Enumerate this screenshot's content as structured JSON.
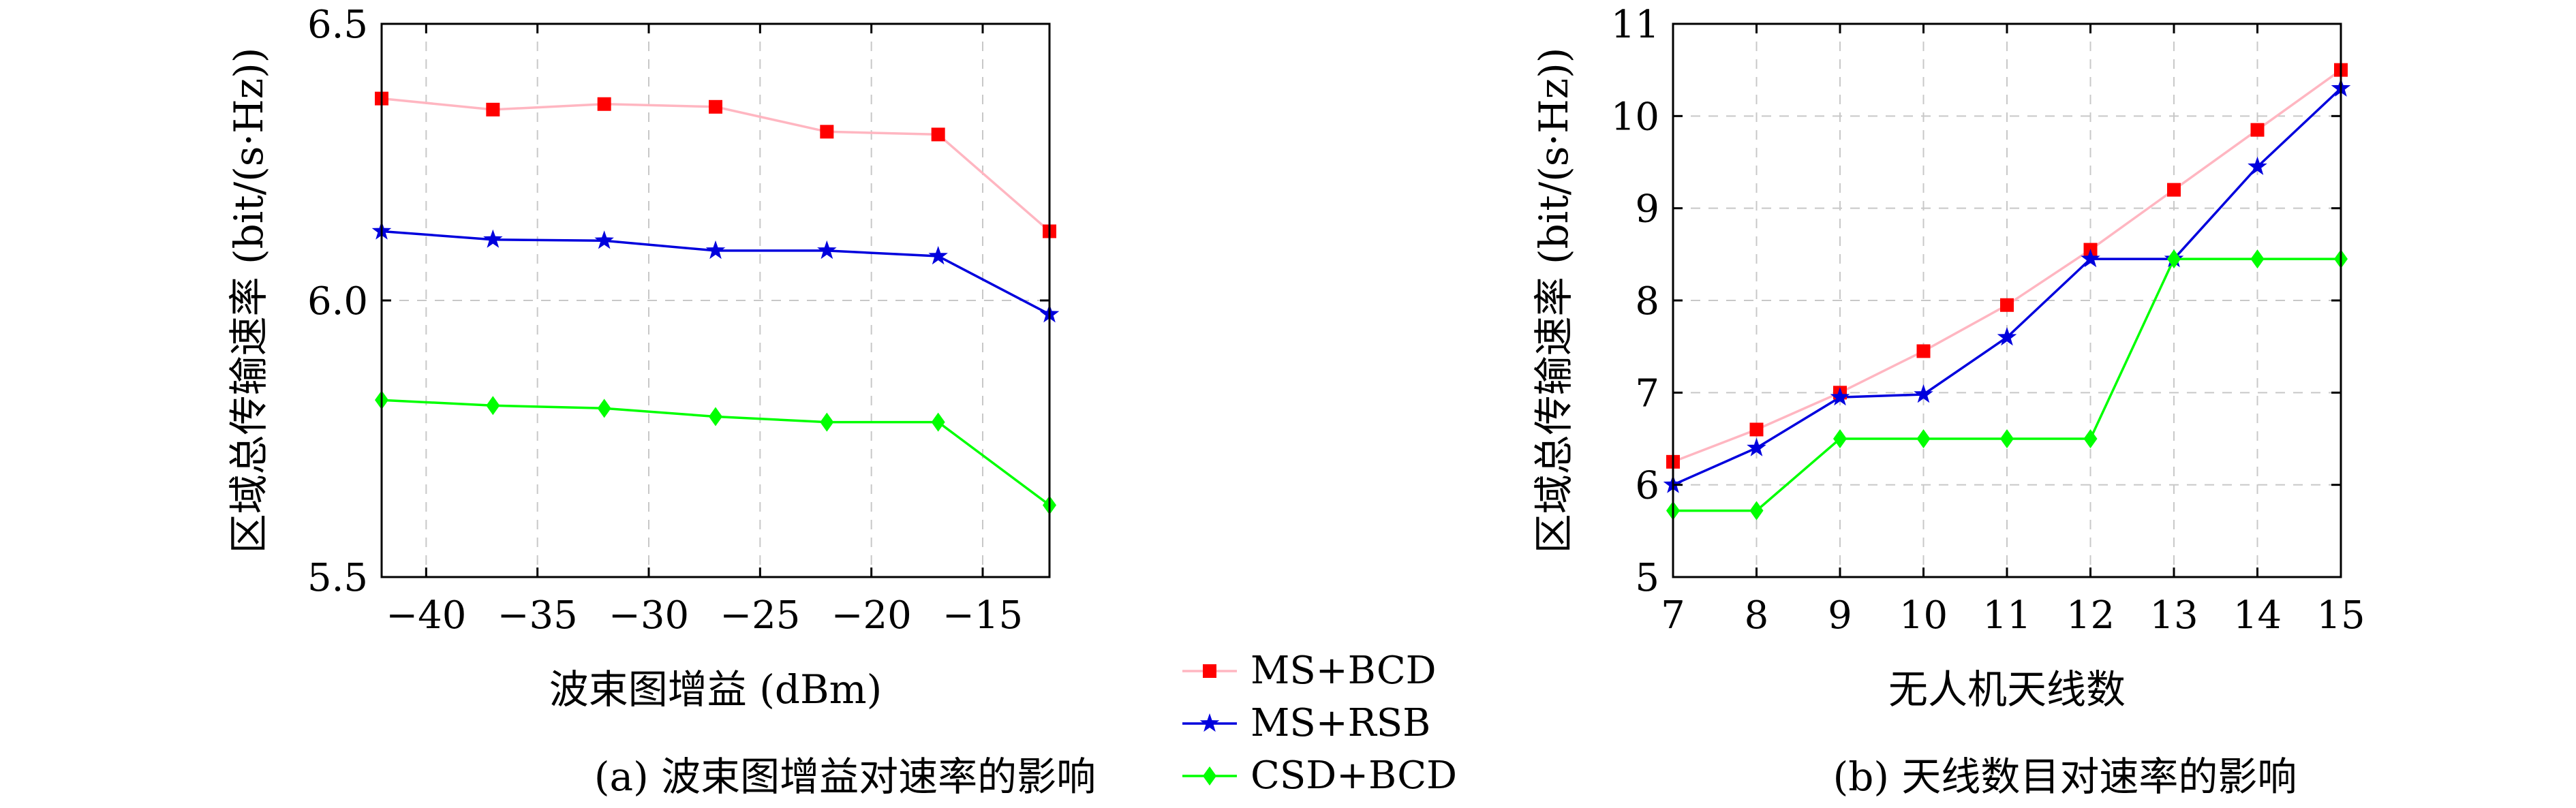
{
  "colors": {
    "red": "#ff0000",
    "pink": "#ffb6c1",
    "blue": "#0000dd",
    "green": "#00ff00",
    "grid": "#c8c8c8"
  },
  "legend": {
    "items": [
      {
        "label": "MS+BCD",
        "marker": "square",
        "color": "#ff0000"
      },
      {
        "label": "MS+RSB",
        "marker": "star",
        "color": "#0000dd"
      },
      {
        "label": "CSD+BCD",
        "marker": "diamond",
        "color": "#00ff00"
      }
    ]
  },
  "chart_data": [
    {
      "type": "line",
      "caption": "(a) 波束图增益对速率的影响",
      "xlabel": "波束图增益 (dBm)",
      "ylabel": "区域总传输速率 (bit/(s·Hz))",
      "xlim": [
        -42,
        -12
      ],
      "ylim": [
        5.5,
        6.5
      ],
      "xticks": [
        -40,
        -35,
        -30,
        -25,
        -20,
        -15
      ],
      "xtick_labels": [
        "−40",
        "−35",
        "−30",
        "−25",
        "−20",
        "−15"
      ],
      "yticks": [
        5.5,
        6.0,
        6.5
      ],
      "ytick_labels": [
        "5.5",
        "6.0",
        "6.5"
      ],
      "grid": true,
      "x": [
        -42,
        -37,
        -32,
        -27,
        -22,
        -17,
        -12
      ],
      "series": [
        {
          "name": "MS+BCD",
          "color": "#ff0000",
          "line_color": "#ffb6c1",
          "marker": "square",
          "values": [
            6.365,
            6.345,
            6.355,
            6.35,
            6.305,
            6.3,
            6.125
          ]
        },
        {
          "name": "MS+RSB",
          "color": "#0000dd",
          "line_color": "#0000dd",
          "marker": "star",
          "values": [
            6.125,
            6.11,
            6.108,
            6.09,
            6.09,
            6.08,
            5.975
          ]
        },
        {
          "name": "CSD+BCD",
          "color": "#00ff00",
          "line_color": "#00ff00",
          "marker": "diamond",
          "values": [
            5.82,
            5.81,
            5.805,
            5.79,
            5.78,
            5.78,
            5.63
          ]
        }
      ]
    },
    {
      "type": "line",
      "caption": "(b) 天线数目对速率的影响",
      "xlabel": "无人机天线数",
      "ylabel": "区域总传输速率 (bit/(s·Hz))",
      "xlim": [
        7,
        15
      ],
      "ylim": [
        5,
        11
      ],
      "xticks": [
        7,
        8,
        9,
        10,
        11,
        12,
        13,
        14,
        15
      ],
      "xtick_labels": [
        "7",
        "8",
        "9",
        "10",
        "11",
        "12",
        "13",
        "14",
        "15"
      ],
      "yticks": [
        5,
        6,
        7,
        8,
        9,
        10,
        11
      ],
      "ytick_labels": [
        "5",
        "6",
        "7",
        "8",
        "9",
        "10",
        "11"
      ],
      "grid": true,
      "x": [
        7,
        8,
        9,
        10,
        11,
        12,
        13,
        14,
        15
      ],
      "series": [
        {
          "name": "MS+BCD",
          "color": "#ff0000",
          "line_color": "#ffb6c1",
          "marker": "square",
          "values": [
            6.25,
            6.6,
            7.0,
            7.45,
            7.95,
            8.55,
            9.2,
            9.85,
            10.5
          ]
        },
        {
          "name": "MS+RSB",
          "color": "#0000dd",
          "line_color": "#0000dd",
          "marker": "star",
          "values": [
            6.0,
            6.4,
            6.95,
            6.98,
            7.6,
            8.45,
            8.45,
            9.45,
            10.3
          ]
        },
        {
          "name": "CSD+BCD",
          "color": "#00ff00",
          "line_color": "#00ff00",
          "marker": "diamond",
          "values": [
            5.72,
            5.72,
            6.5,
            6.5,
            6.5,
            6.5,
            8.45,
            8.45,
            8.45
          ]
        }
      ]
    }
  ]
}
